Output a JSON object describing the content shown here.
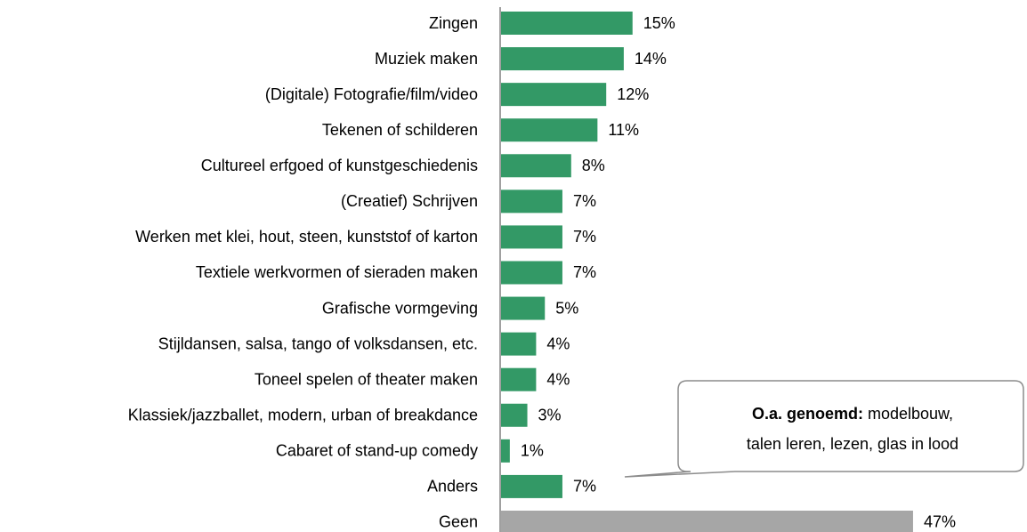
{
  "chart_data": {
    "type": "hbar",
    "categories": [
      "Zingen",
      "Muziek maken",
      "(Digitale) Fotografie/film/video",
      "Tekenen of schilderen",
      "Cultureel erfgoed of kunstgeschiedenis",
      "(Creatief) Schrijven",
      "Werken met klei, hout, steen, kunststof of karton",
      "Textiele werkvormen of sieraden maken",
      "Grafische vormgeving",
      "Stijldansen, salsa, tango of volksdansen, etc.",
      "Toneel spelen of theater maken",
      "Klassiek/jazzballet, modern, urban of breakdance",
      "Cabaret of stand-up comedy",
      "Anders",
      "Geen"
    ],
    "values": [
      15,
      14,
      12,
      11,
      8,
      7,
      7,
      7,
      5,
      4,
      4,
      3,
      1,
      7,
      47
    ],
    "value_labels": [
      "15%",
      "14%",
      "12%",
      "11%",
      "8%",
      "7%",
      "7%",
      "7%",
      "5%",
      "4%",
      "4%",
      "3%",
      "1%",
      "7%",
      "47%"
    ],
    "colors": [
      "#339966",
      "#339966",
      "#339966",
      "#339966",
      "#339966",
      "#339966",
      "#339966",
      "#339966",
      "#339966",
      "#339966",
      "#339966",
      "#339966",
      "#339966",
      "#339966",
      "#a6a6a6"
    ],
    "annotation": {
      "bold": "O.a. genoemd:",
      "lines": [
        "modelbouw,",
        "talen leren, lezen, glas in lood"
      ]
    }
  }
}
